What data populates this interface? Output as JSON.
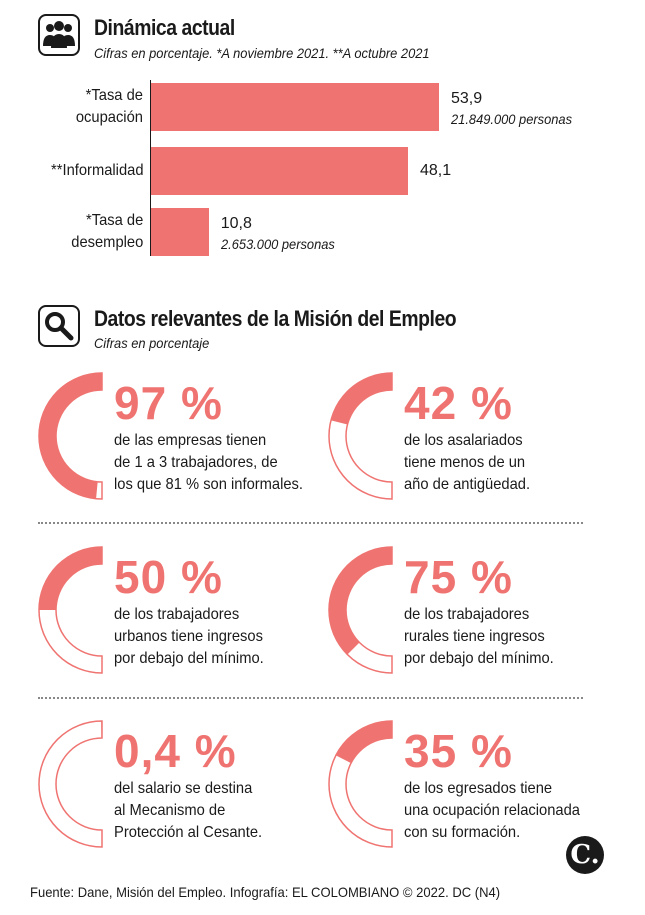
{
  "section1": {
    "title": "Dinámica actual",
    "subtitle": "Cifras en porcentaje.  *A noviembre 2021.  **A octubre 2021",
    "icon": "people-icon"
  },
  "chart_data": {
    "type": "bar",
    "orientation": "horizontal",
    "title": "Dinámica actual",
    "subtitle": "Cifras en porcentaje.  *A noviembre 2021.  **A octubre 2021",
    "categories": [
      "*Tasa de\nocupación",
      "**Informalidad",
      "*Tasa de\ndesempleo"
    ],
    "values": [
      53.9,
      48.1,
      10.8
    ],
    "value_labels": [
      "53,9",
      "48,1",
      "10,8"
    ],
    "notes": [
      "21.849.000 personas",
      "",
      "2.653.000 personas"
    ],
    "color": "#ef7471",
    "xlim": [
      0,
      60
    ],
    "grid": false
  },
  "section2": {
    "title": "Datos relevantes de la Misión del Empleo",
    "subtitle": "Cifras en porcentaje",
    "icon": "magnifier-icon"
  },
  "stats": [
    {
      "value": "97 %",
      "fraction": 0.97,
      "desc": "de las empresas tienen\nde 1 a 3 trabajadores, de\nlos que 81 % son informales."
    },
    {
      "value": "42 %",
      "fraction": 0.42,
      "desc": "de los asalariados\ntiene menos de un\naño de antigüedad."
    },
    {
      "value": "50 %",
      "fraction": 0.5,
      "desc": "de los trabajadores\nurbanos tiene ingresos\npor debajo del mínimo."
    },
    {
      "value": "75 %",
      "fraction": 0.75,
      "desc": "de los trabajadores\nrurales tiene ingresos\npor debajo del mínimo."
    },
    {
      "value": "0,4 %",
      "fraction": 0.004,
      "desc": "del salario se destina\nal Mecanismo de\nProtección al Cesante."
    },
    {
      "value": "35 %",
      "fraction": 0.35,
      "desc": "de los egresados tiene\nuna ocupación relacionada\ncon su formación."
    }
  ],
  "colors": {
    "accent": "#ef7471",
    "text": "#1a1a1a"
  },
  "logo": {
    "letter": "C."
  },
  "footer": "Fuente: Dane, Misión del Empleo. Infografía: EL COLOMBIANO © 2022. DC (N4)"
}
